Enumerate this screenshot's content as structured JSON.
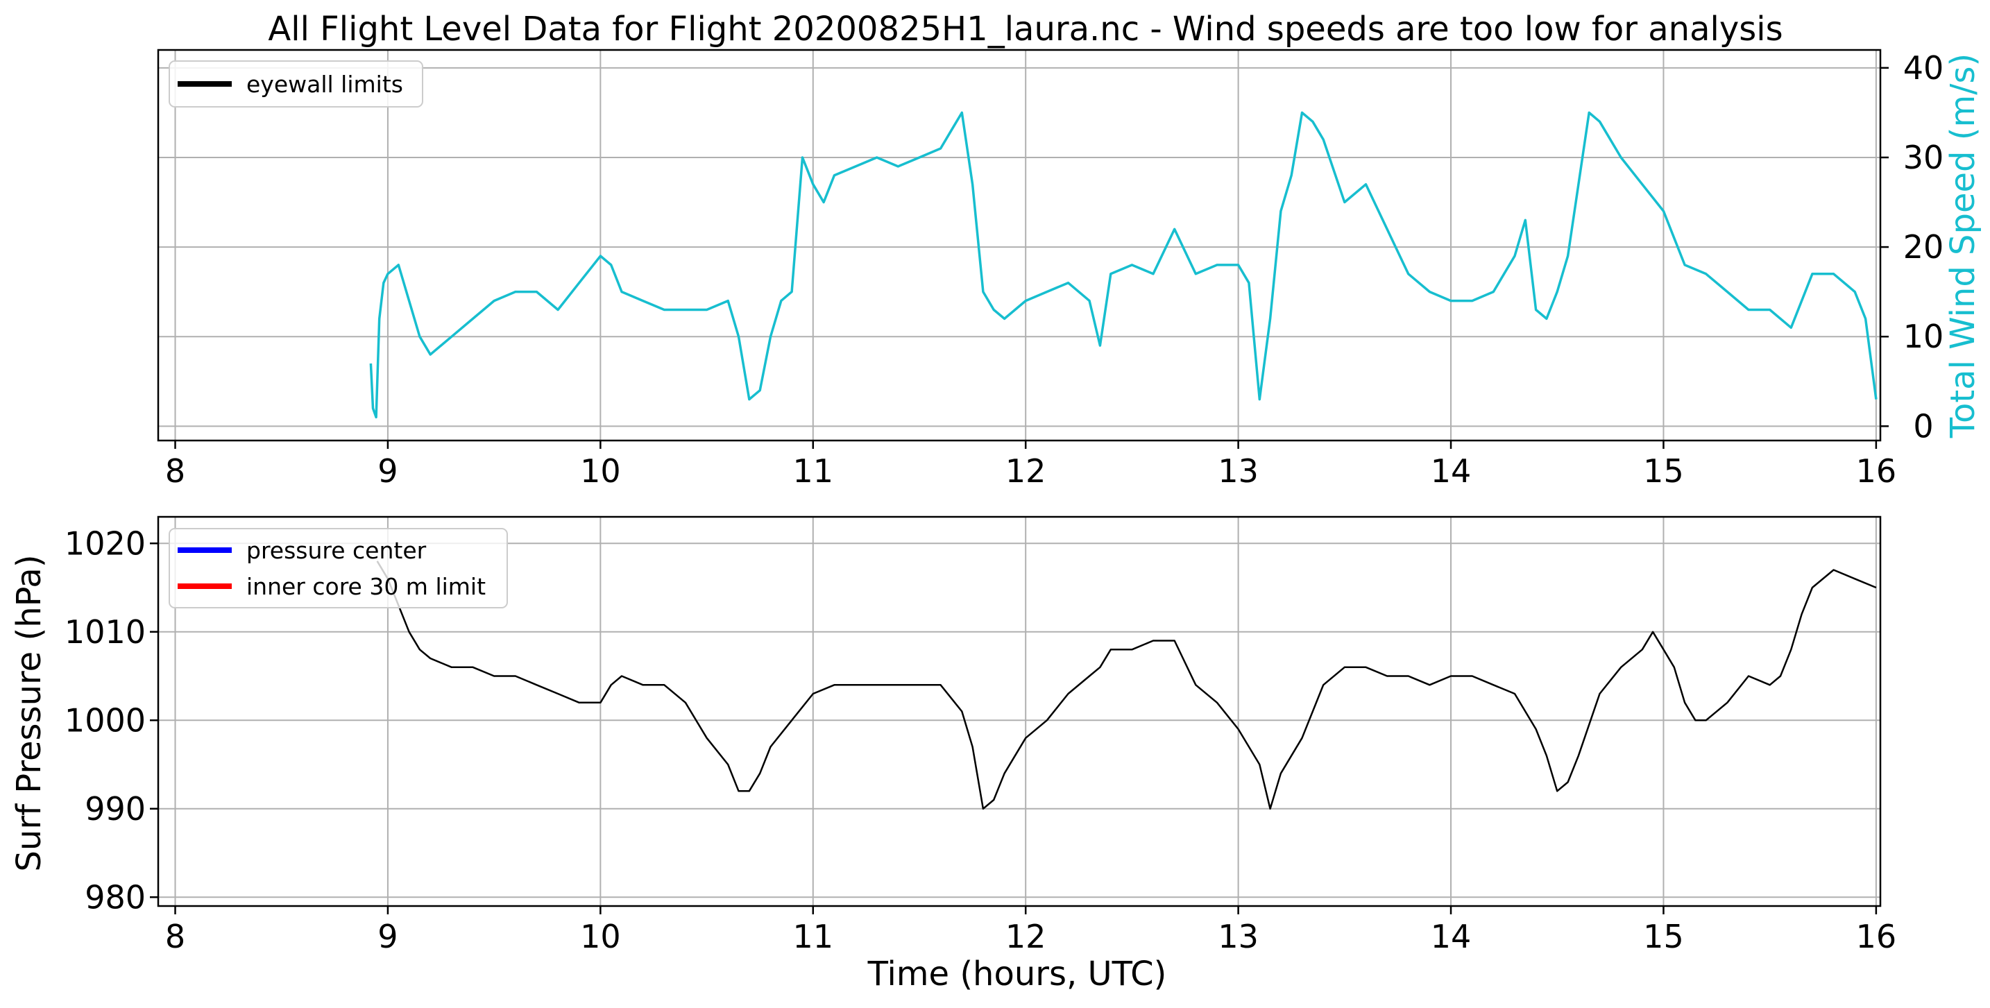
{
  "title": "All Flight Level Data for Flight 20200825H1_laura.nc - Wind speeds are too low for analysis",
  "top_panel": {
    "ylabel_right": "Total Wind Speed (m/s)",
    "ylabel_color": "#17becf",
    "legend": [
      {
        "label": "eyewall limits",
        "color": "#000000"
      }
    ]
  },
  "bottom_panel": {
    "xlabel": "Time (hours, UTC)",
    "ylabel": "Surf Pressure (hPa)",
    "legend": [
      {
        "label": "pressure center",
        "color": "#0000ff"
      },
      {
        "label": "inner core 30 m limit",
        "color": "#ff0000"
      }
    ]
  },
  "chart_data": [
    {
      "type": "line",
      "title": "All Flight Level Data for Flight 20200825H1_laura.nc - Wind speeds are too low for analysis",
      "xlabel": "",
      "ylabel": "Total Wind Speed (m/s)",
      "xlim": [
        7.92,
        16.02
      ],
      "ylim": [
        -1.6,
        42
      ],
      "xticks": [
        8,
        9,
        10,
        11,
        12,
        13,
        14,
        15,
        16
      ],
      "yticks": [
        0,
        10,
        20,
        30,
        40
      ],
      "grid": true,
      "legend_position": "upper-left",
      "series": [
        {
          "color": "#17becf",
          "x": [
            8.92,
            8.93,
            8.945,
            8.96,
            8.98,
            9.0,
            9.05,
            9.1,
            9.15,
            9.2,
            9.25,
            9.3,
            9.4,
            9.5,
            9.6,
            9.7,
            9.8,
            9.9,
            10.0,
            10.05,
            10.1,
            10.2,
            10.3,
            10.4,
            10.5,
            10.6,
            10.65,
            10.7,
            10.75,
            10.8,
            10.85,
            10.9,
            10.95,
            11.0,
            11.05,
            11.1,
            11.2,
            11.3,
            11.4,
            11.5,
            11.6,
            11.65,
            11.7,
            11.75,
            11.8,
            11.85,
            11.9,
            12.0,
            12.1,
            12.2,
            12.3,
            12.35,
            12.4,
            12.5,
            12.6,
            12.7,
            12.8,
            12.9,
            13.0,
            13.05,
            13.1,
            13.15,
            13.2,
            13.25,
            13.3,
            13.35,
            13.4,
            13.5,
            13.6,
            13.7,
            13.8,
            13.9,
            14.0,
            14.1,
            14.2,
            14.3,
            14.35,
            14.4,
            14.45,
            14.5,
            14.55,
            14.6,
            14.65,
            14.7,
            14.8,
            14.9,
            15.0,
            15.1,
            15.2,
            15.3,
            15.4,
            15.5,
            15.6,
            15.65,
            15.7,
            15.8,
            15.9,
            15.95,
            16.0
          ],
          "y": [
            7,
            2,
            1,
            12,
            16,
            17,
            18,
            14,
            10,
            8,
            9,
            10,
            12,
            14,
            15,
            15,
            13,
            16,
            19,
            18,
            15,
            14,
            13,
            13,
            13,
            14,
            10,
            3,
            4,
            10,
            14,
            15,
            30,
            27,
            25,
            28,
            29,
            30,
            29,
            30,
            31,
            33,
            35,
            27,
            15,
            13,
            12,
            14,
            15,
            16,
            14,
            9,
            17,
            18,
            17,
            22,
            17,
            18,
            18,
            16,
            3,
            12,
            24,
            28,
            35,
            34,
            32,
            25,
            27,
            22,
            17,
            15,
            14,
            14,
            15,
            19,
            23,
            13,
            12,
            15,
            19,
            27,
            35,
            34,
            30,
            27,
            24,
            18,
            17,
            15,
            13,
            13,
            11,
            14,
            17,
            17,
            15,
            12,
            3
          ]
        }
      ]
    },
    {
      "type": "line",
      "title": "",
      "xlabel": "Time (hours, UTC)",
      "ylabel": "Surf Pressure (hPa)",
      "xlim": [
        7.92,
        16.02
      ],
      "ylim": [
        979,
        1023
      ],
      "xticks": [
        8,
        9,
        10,
        11,
        12,
        13,
        14,
        15,
        16
      ],
      "yticks": [
        980,
        990,
        1000,
        1010,
        1020
      ],
      "grid": true,
      "legend_position": "upper-left",
      "series": [
        {
          "color": "#000000",
          "x": [
            8.95,
            9.0,
            9.05,
            9.1,
            9.15,
            9.2,
            9.3,
            9.4,
            9.5,
            9.6,
            9.7,
            9.8,
            9.9,
            10.0,
            10.05,
            10.1,
            10.2,
            10.3,
            10.4,
            10.5,
            10.6,
            10.65,
            10.7,
            10.75,
            10.8,
            10.9,
            11.0,
            11.1,
            11.2,
            11.3,
            11.4,
            11.5,
            11.6,
            11.7,
            11.75,
            11.8,
            11.85,
            11.9,
            12.0,
            12.1,
            12.2,
            12.3,
            12.35,
            12.4,
            12.5,
            12.6,
            12.7,
            12.8,
            12.9,
            13.0,
            13.1,
            13.15,
            13.2,
            13.3,
            13.4,
            13.5,
            13.6,
            13.7,
            13.8,
            13.9,
            14.0,
            14.1,
            14.2,
            14.3,
            14.4,
            14.45,
            14.5,
            14.55,
            14.6,
            14.7,
            14.8,
            14.9,
            14.95,
            15.0,
            15.05,
            15.1,
            15.15,
            15.2,
            15.3,
            15.4,
            15.5,
            15.55,
            15.6,
            15.65,
            15.7,
            15.8,
            15.9,
            16.0
          ],
          "y": [
            1018,
            1016,
            1013,
            1010,
            1008,
            1007,
            1006,
            1006,
            1005,
            1005,
            1004,
            1003,
            1002,
            1002,
            1004,
            1005,
            1004,
            1004,
            1002,
            998,
            995,
            992,
            992,
            994,
            997,
            1000,
            1003,
            1004,
            1004,
            1004,
            1004,
            1004,
            1004,
            1001,
            997,
            990,
            991,
            994,
            998,
            1000,
            1003,
            1005,
            1006,
            1008,
            1008,
            1009,
            1009,
            1004,
            1002,
            999,
            995,
            990,
            994,
            998,
            1004,
            1006,
            1006,
            1005,
            1005,
            1004,
            1005,
            1005,
            1004,
            1003,
            999,
            996,
            992,
            993,
            996,
            1003,
            1006,
            1008,
            1010,
            1008,
            1006,
            1002,
            1000,
            1000,
            1002,
            1005,
            1004,
            1005,
            1008,
            1012,
            1015,
            1017,
            1016,
            1015
          ]
        }
      ]
    }
  ]
}
